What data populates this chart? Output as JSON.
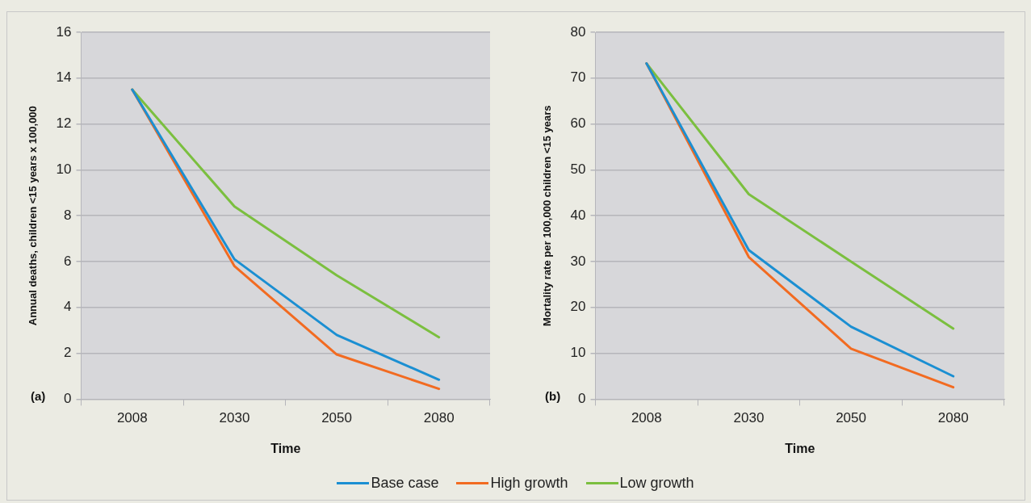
{
  "chart_data": [
    {
      "type": "line",
      "categories": [
        "2008",
        "2030",
        "2050",
        "2080"
      ],
      "xlabel": "Time",
      "ylabel": "Annual deaths, children <15 years x 100,000",
      "ylim": [
        0,
        16
      ],
      "yticks": [
        0,
        2,
        4,
        6,
        8,
        10,
        12,
        14,
        16
      ],
      "grid": "y",
      "legend": "bottom",
      "annotations": [
        "(a)"
      ],
      "series": [
        {
          "name": "Base case",
          "color": "#1b8fd2",
          "values": [
            13.5,
            6.1,
            2.8,
            0.85
          ]
        },
        {
          "name": "High growth",
          "color": "#f26b21",
          "values": [
            13.5,
            5.8,
            1.95,
            0.45
          ]
        },
        {
          "name": "Low growth",
          "color": "#7bbf3f",
          "values": [
            13.5,
            8.4,
            5.4,
            2.7
          ]
        }
      ]
    },
    {
      "type": "line",
      "categories": [
        "2008",
        "2030",
        "2050",
        "2080"
      ],
      "xlabel": "Time",
      "ylabel": "Mortality rate per 100,000 children <15 years",
      "ylim": [
        0,
        80
      ],
      "yticks": [
        0,
        10,
        20,
        30,
        40,
        50,
        60,
        70,
        80
      ],
      "grid": "y",
      "annotations": [
        "(b)"
      ],
      "series": [
        {
          "color": "#1b8fd2",
          "values": [
            73.2,
            32.5,
            15.8,
            5
          ]
        },
        {
          "color": "#f26b21",
          "values": [
            73.2,
            31,
            11,
            2.6
          ]
        },
        {
          "color": "#7bbf3f",
          "values": [
            73.2,
            44.7,
            30,
            15.4
          ]
        }
      ]
    }
  ]
}
